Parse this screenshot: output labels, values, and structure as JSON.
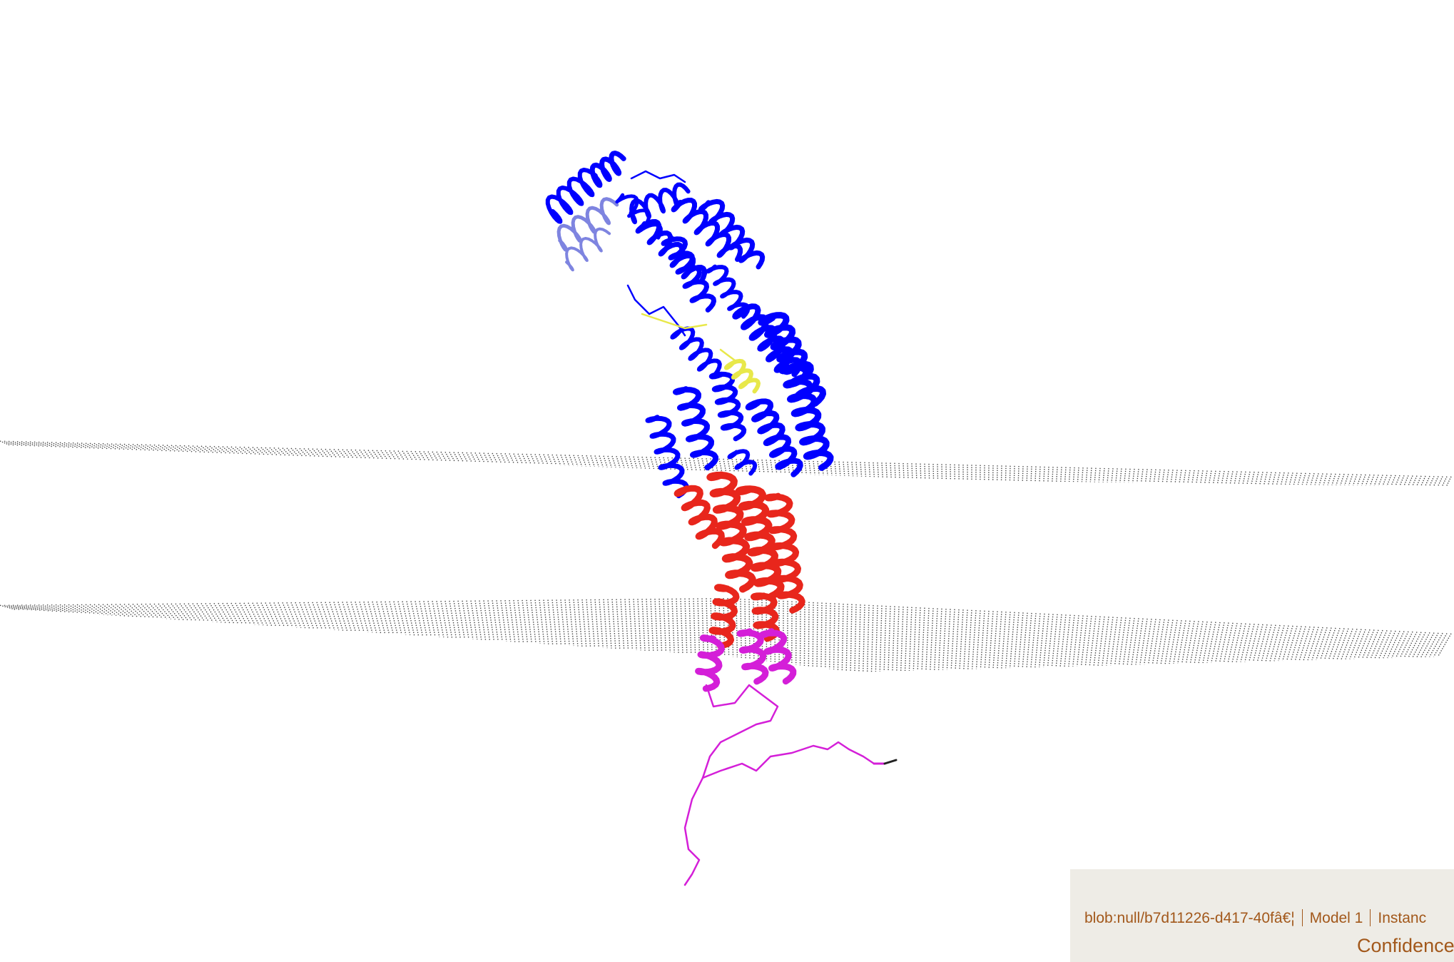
{
  "viewer": {
    "canvas_label": "3D structure viewport",
    "colors": {
      "background": "#ffffff",
      "membrane_dots": "#444444",
      "confidence_very_high": "#0000ff",
      "confidence_confident": "#7e84e0",
      "confidence_low": "#e8e84a",
      "region_red": "#e8261c",
      "region_magenta": "#d41fd8",
      "terminus": "#222222"
    },
    "icons": [
      "membrane-plane-top",
      "membrane-plane-bottom",
      "protein-cartoon"
    ]
  },
  "info_panel": {
    "source": "blob:null/b7d11226-d417-40fâ€¦",
    "model": "Model 1",
    "instance": "Instanc",
    "confidence": "Confidence"
  }
}
